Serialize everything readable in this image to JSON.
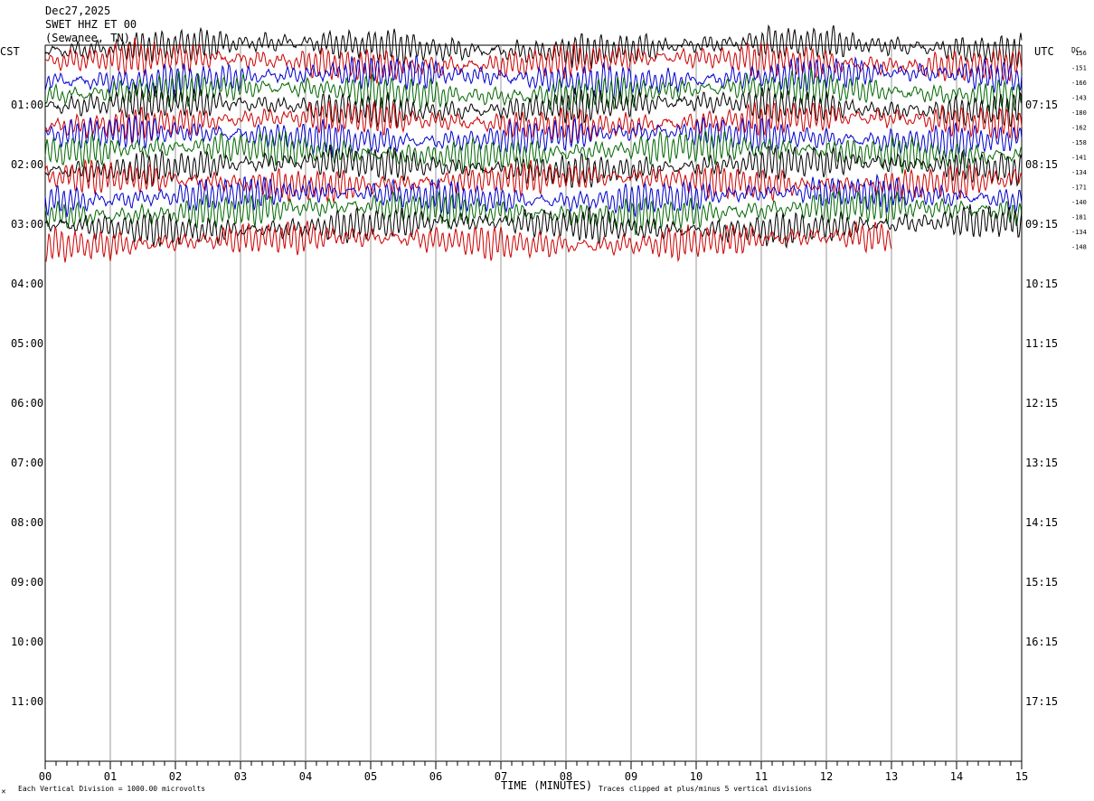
{
  "header": {
    "date": "Dec27,2025",
    "station": "SWET HHZ ET 00",
    "location": "(Sewanee, TN)"
  },
  "left_tz": "CST",
  "right_tz": "UTC",
  "dc_label": "DC",
  "colors": [
    "#000000",
    "#cc0000",
    "#0000cc",
    "#006600"
  ],
  "footer": {
    "scale_note": "Each Vertical Division = 1000.00 microvolts",
    "xlabel": "TIME (MINUTES)",
    "clip_note": "Traces clipped at plus/minus 5 vertical divisions",
    "corner_mark": "✕"
  },
  "chart_data": {
    "type": "line",
    "title": "Dec27,2025 SWET HHZ ET 00 (Sewanee, TN)",
    "xlabel": "TIME (MINUTES)",
    "x_ticks": [
      "00",
      "01",
      "02",
      "03",
      "04",
      "05",
      "06",
      "07",
      "08",
      "09",
      "10",
      "11",
      "12",
      "13",
      "14",
      "15"
    ],
    "xlim": [
      0,
      15
    ],
    "y_rows_hours": 12,
    "y_ticks_left": [
      "01:00",
      "02:00",
      "03:00",
      "04:00",
      "05:00",
      "06:00",
      "07:00",
      "08:00",
      "09:00",
      "10:00",
      "11:00"
    ],
    "y_ticks_right": [
      "07:15",
      "08:15",
      "09:15",
      "10:15",
      "11:15",
      "12:15",
      "13:15",
      "14:15",
      "15:15",
      "16:15",
      "17:15"
    ],
    "trace_interval_minutes": 15,
    "trace_count": 14,
    "last_trace_end_minute": 13,
    "trace_colors_cycle": [
      "black",
      "red",
      "blue",
      "green"
    ],
    "dc_offsets": [
      "-156",
      "-151",
      "-166",
      "-143",
      "-180",
      "-162",
      "-158",
      "-141",
      "-134",
      "-171",
      "-140",
      "-181",
      "-134",
      "-148"
    ],
    "grid": "vertical lines every minute"
  }
}
